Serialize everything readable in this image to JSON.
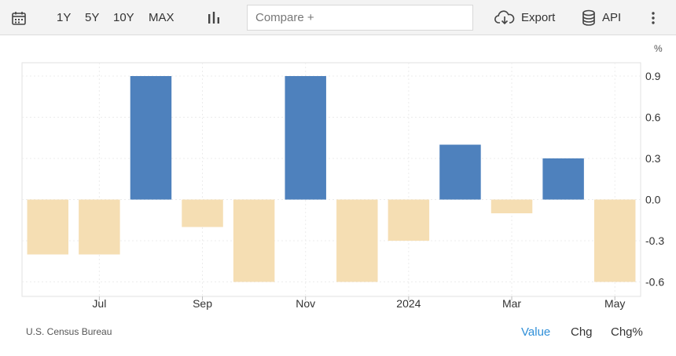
{
  "toolbar": {
    "calendar_icon": "calendar-icon",
    "ranges": [
      "1Y",
      "5Y",
      "10Y",
      "MAX"
    ],
    "chart_type_icon": "bar-chart-icon",
    "compare_placeholder": "Compare +",
    "export_label": "Export",
    "export_icon": "cloud-download-icon",
    "api_label": "API",
    "api_icon": "database-icon",
    "more_icon": "vertical-dots-icon"
  },
  "chart_data": {
    "type": "bar",
    "unit": "%",
    "x": [
      "2023-06",
      "2023-07",
      "2023-08",
      "2023-09",
      "2023-10",
      "2023-11",
      "2023-12",
      "2024-01",
      "2024-02",
      "2024-03",
      "2024-04",
      "2024-05"
    ],
    "values": [
      -0.4,
      -0.4,
      0.9,
      -0.2,
      -0.6,
      0.9,
      -0.6,
      -0.3,
      0.4,
      -0.1,
      0.3,
      -0.6
    ],
    "x_tick_labels": [
      "Jul",
      "Sep",
      "Nov",
      "2024",
      "Mar",
      "May"
    ],
    "x_tick_positions": [
      "2023-07",
      "2023-09",
      "2023-11",
      "2024-01",
      "2024-03",
      "2024-05"
    ],
    "y_ticks": [
      "0.9",
      "0.6",
      "0.3",
      "0.0",
      "-0.3",
      "-0.6"
    ],
    "ylim": [
      -0.6,
      0.9
    ],
    "positive_color": "#4e81bd",
    "negative_color": "#f5deb3",
    "grid": true,
    "y_axis_side": "right"
  },
  "footer": {
    "source": "U.S. Census Bureau",
    "modes": [
      "Value",
      "Chg",
      "Chg%"
    ],
    "active_mode": "Value"
  }
}
